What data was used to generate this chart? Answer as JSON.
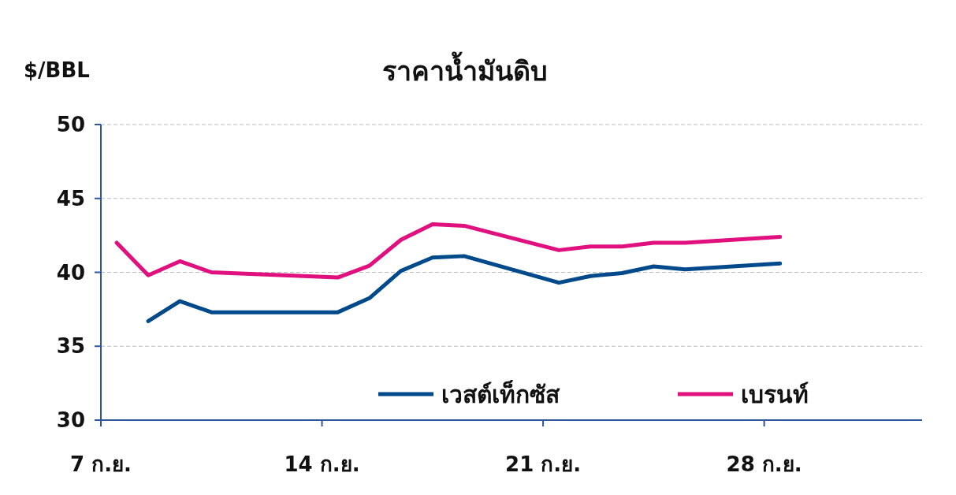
{
  "chart_data": {
    "type": "line",
    "title": "ราคาน้ำมันดิบ",
    "ylabel": "$/BBL",
    "x": [
      7,
      8,
      9,
      10,
      14,
      15,
      16,
      17,
      18,
      21,
      22,
      23,
      24,
      25,
      28
    ],
    "series": [
      {
        "name": "เวสต์เท็กซัส",
        "color": "#004a8c",
        "values": [
          null,
          36.7,
          38.05,
          37.3,
          37.3,
          38.25,
          40.1,
          41.0,
          41.1,
          39.3,
          39.75,
          39.95,
          40.4,
          40.2,
          40.6
        ]
      },
      {
        "name": "เบรนท์",
        "color": "#e0107f",
        "values": [
          42.0,
          39.8,
          40.75,
          40.0,
          39.65,
          40.45,
          42.2,
          43.25,
          43.15,
          41.5,
          41.75,
          41.75,
          42.0,
          42.0,
          42.4
        ]
      }
    ],
    "xlim": [
      6.5,
      32.5
    ],
    "xticks": [
      {
        "value": 6.5,
        "label": "7 ก.ย."
      },
      {
        "value": 13.5,
        "label": "14 ก.ย."
      },
      {
        "value": 20.5,
        "label": "21 ก.ย."
      },
      {
        "value": 27.5,
        "label": "28 ก.ย."
      }
    ],
    "ylim": [
      30,
      50
    ],
    "yticks": [
      30,
      35,
      40,
      45,
      50
    ],
    "grid": "y",
    "legend": "bottom right",
    "marker": "none",
    "line_style": "solid"
  }
}
